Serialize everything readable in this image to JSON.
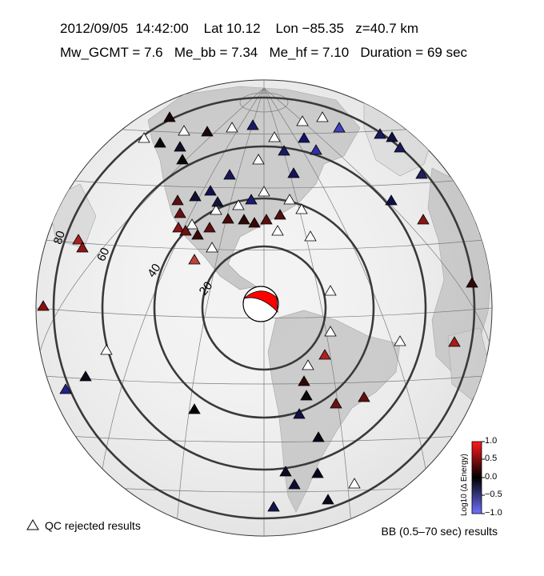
{
  "header": {
    "date": "2012/09/05",
    "time": "14:42:00",
    "lat": "Lat 10.12",
    "lon": "Lon −85.35",
    "depth": "z=40.7 km",
    "mw": "Mw_GCMT = 7.6",
    "me_bb": "Me_bb = 7.34",
    "me_hf": "Me_hf = 7.10",
    "duration": "Duration = 69 sec"
  },
  "map": {
    "ring_labels": [
      "20",
      "40",
      "60",
      "80"
    ],
    "colors": {
      "ring": "#3a3a3a",
      "land": "#c9c9c9",
      "ocean": "#f2f2f2",
      "beachball": "#ff0000"
    }
  },
  "colorbar": {
    "title": "Log10 (Δ Energy)",
    "ticks": [
      "1.0",
      "0.5",
      "0.0",
      "−0.5",
      "−1.0"
    ],
    "colors": [
      "#ff0000",
      "#000000",
      "#3333ff"
    ]
  },
  "legend": {
    "qc_label": "QC rejected results",
    "bb_label": "BB (0.5–70 sec) results"
  },
  "stations": [
    {
      "id": "s1",
      "value": "rejected"
    },
    {
      "id": "s2",
      "value": -0.1
    },
    {
      "id": "s3",
      "value": 0.0
    },
    {
      "id": "s4",
      "value": -0.8
    },
    {
      "id": "s5",
      "value": -0.6
    },
    {
      "id": "s6",
      "value": 0.8
    }
  ]
}
